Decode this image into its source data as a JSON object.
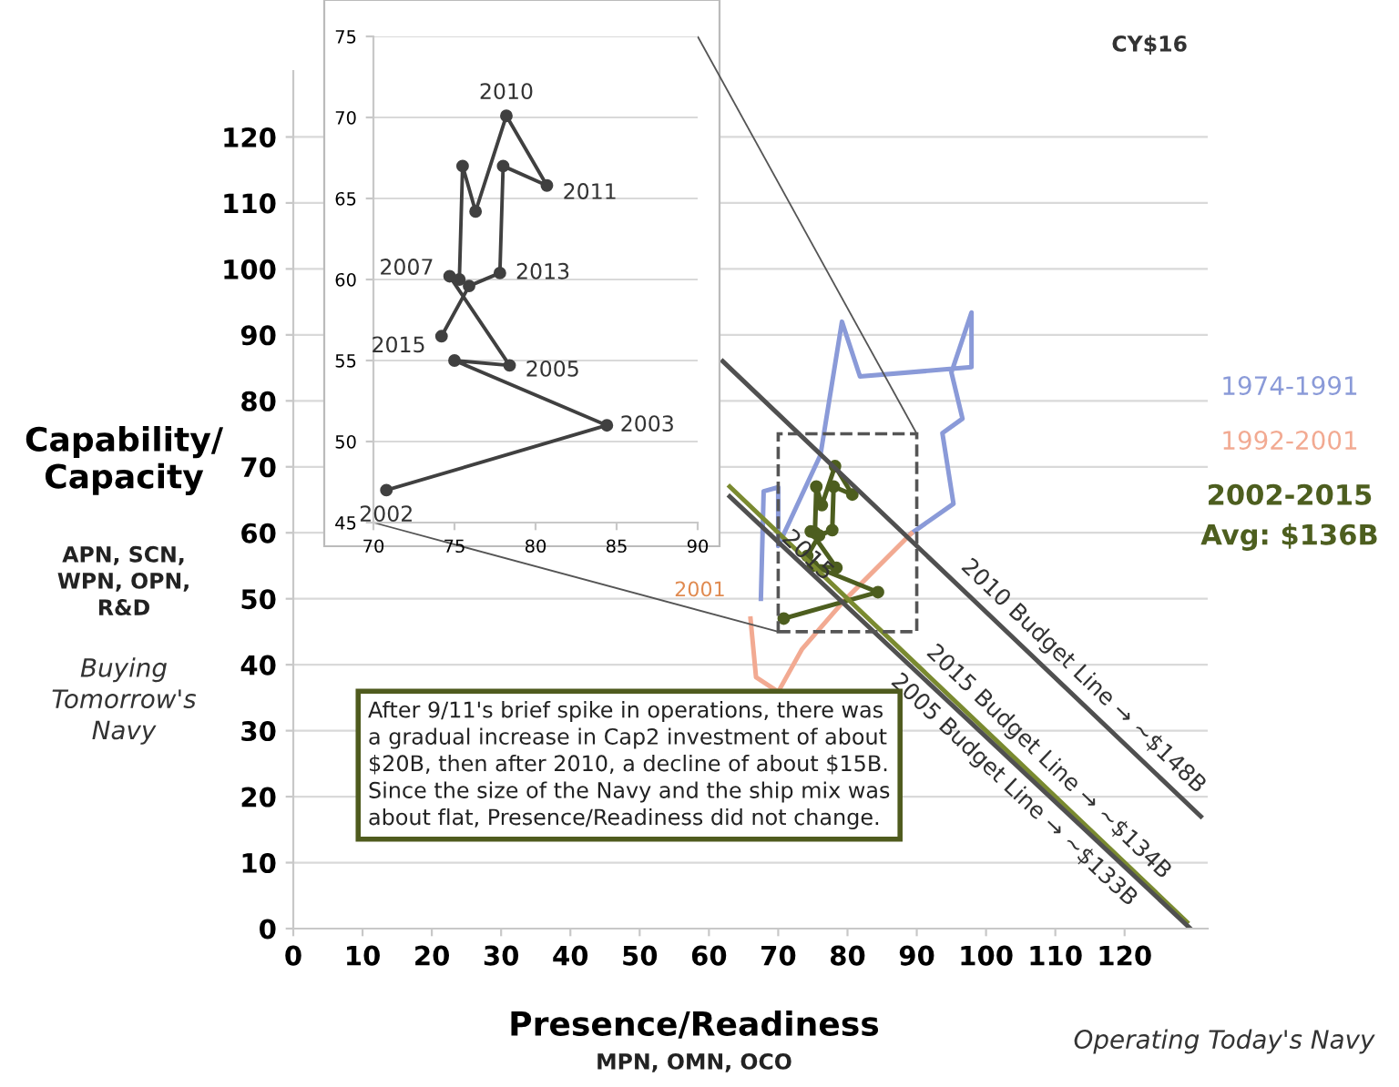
{
  "chart_data": [
    {
      "type": "line",
      "xlabel": "Presence/Readiness",
      "ylabel": "Capability/\nCapacity",
      "xlim": [
        0,
        132
      ],
      "ylim": [
        0,
        130
      ],
      "xticks": [
        0,
        10,
        20,
        30,
        40,
        50,
        60,
        70,
        80,
        90,
        100,
        110,
        120
      ],
      "yticks": [
        0,
        10,
        20,
        30,
        40,
        50,
        60,
        70,
        80,
        90,
        100,
        110,
        120
      ],
      "grid": "y",
      "legend": "right",
      "series": [
        {
          "name": "1974-1991",
          "color": "#8a9ad8",
          "x": [
            67.5,
            67.9,
            70,
            70,
            76.1,
            79.2,
            81.8,
            97.9,
            97.9,
            95,
            96.6,
            93.7,
            95.3,
            89.2
          ],
          "values": [
            50,
            66.3,
            66.9,
            58,
            71.8,
            92,
            83.7,
            85.1,
            93.4,
            84.3,
            77.3,
            75.1,
            64.4,
            59.9
          ]
        },
        {
          "name": "1992-2001",
          "color": "#f2aa92",
          "x": [
            89.2,
            79.5,
            73.4,
            70,
            66.8,
            66
          ],
          "values": [
            59.9,
            49.7,
            42.3,
            35.9,
            38.1,
            47
          ]
        },
        {
          "name": "2002-2015",
          "color": "#4d5e1f",
          "marker": "circle",
          "x": [
            70.8,
            84.4,
            75,
            78.4,
            74.7,
            75.3,
            75.5,
            76.3,
            78.2,
            80.7,
            78,
            77.8,
            75.9,
            74.2
          ],
          "values": [
            47,
            51,
            55,
            54.7,
            60.2,
            60,
            67,
            64.2,
            70.1,
            65.8,
            67,
            60.4,
            59.6,
            56.5
          ]
        },
        {
          "color": "#505050",
          "x": [
            62,
            131
          ],
          "values": [
            86,
            17
          ]
        },
        {
          "color": "#7a8a30",
          "x": [
            63,
            129
          ],
          "values": [
            67,
            1
          ]
        },
        {
          "color": "#505050",
          "x": [
            63,
            129.5
          ],
          "values": [
            65.5,
            0
          ]
        }
      ],
      "annotations": [
        "CY$16",
        "After 9/11's brief spike in operations, there was\na gradual increase in Cap2 investment of about\n$20B, then after 2010, a decline of about $15B.\nSince the size of the Navy and the ship mix was\nabout flat, Presence/Readiness did not change.",
        "APN, SCN,\nWPN, OPN,\nR&D",
        "Buying\nTomorrow's\nNavy",
        "MPN, OMN, OCO",
        "Operating Today's Navy",
        "Avg: $136B",
        {
          "text": "2001",
          "x": 66,
          "y": 47
        },
        {
          "text": "2015",
          "x": 74.2,
          "y": 56.5
        },
        {
          "text": "2010 Budget Line → ~$148B",
          "x": 112,
          "y": 36
        },
        {
          "text": "2015 Budget Line → ~$134B",
          "x": 107,
          "y": 23
        },
        {
          "text": "2005 Budget Line → ~$133B",
          "x": 106,
          "y": 23.2
        }
      ]
    },
    {
      "type": "line",
      "xlim": [
        70,
        90
      ],
      "ylim": [
        45,
        75
      ],
      "xticks": [
        70,
        75,
        80,
        85,
        90
      ],
      "yticks": [
        45,
        50,
        55,
        60,
        65,
        70,
        75
      ],
      "grid": "y",
      "series": [
        {
          "color": "#404040",
          "marker": "circle",
          "x": [
            70.8,
            84.4,
            75,
            78.4,
            74.7,
            75.3,
            75.5,
            76.3,
            78.2,
            80.7,
            78,
            77.8,
            75.9,
            74.2
          ],
          "values": [
            47,
            51,
            55,
            54.7,
            60.2,
            60,
            67,
            64.2,
            70.1,
            65.8,
            67,
            60.4,
            59.6,
            56.5
          ]
        }
      ],
      "annotations": [
        {
          "text": "2002",
          "x": 70.8,
          "y": 47
        },
        {
          "text": "2003",
          "x": 84.4,
          "y": 51
        },
        {
          "text": "2005",
          "x": 78.4,
          "y": 54.7
        },
        {
          "text": "2007",
          "x": 74.7,
          "y": 60.2
        },
        {
          "text": "2010",
          "x": 78.2,
          "y": 70.1
        },
        {
          "text": "2011",
          "x": 80.7,
          "y": 65.8
        },
        {
          "text": "2013",
          "x": 77.8,
          "y": 60.4
        },
        {
          "text": "2015",
          "x": 74.2,
          "y": 56.5
        }
      ]
    }
  ]
}
